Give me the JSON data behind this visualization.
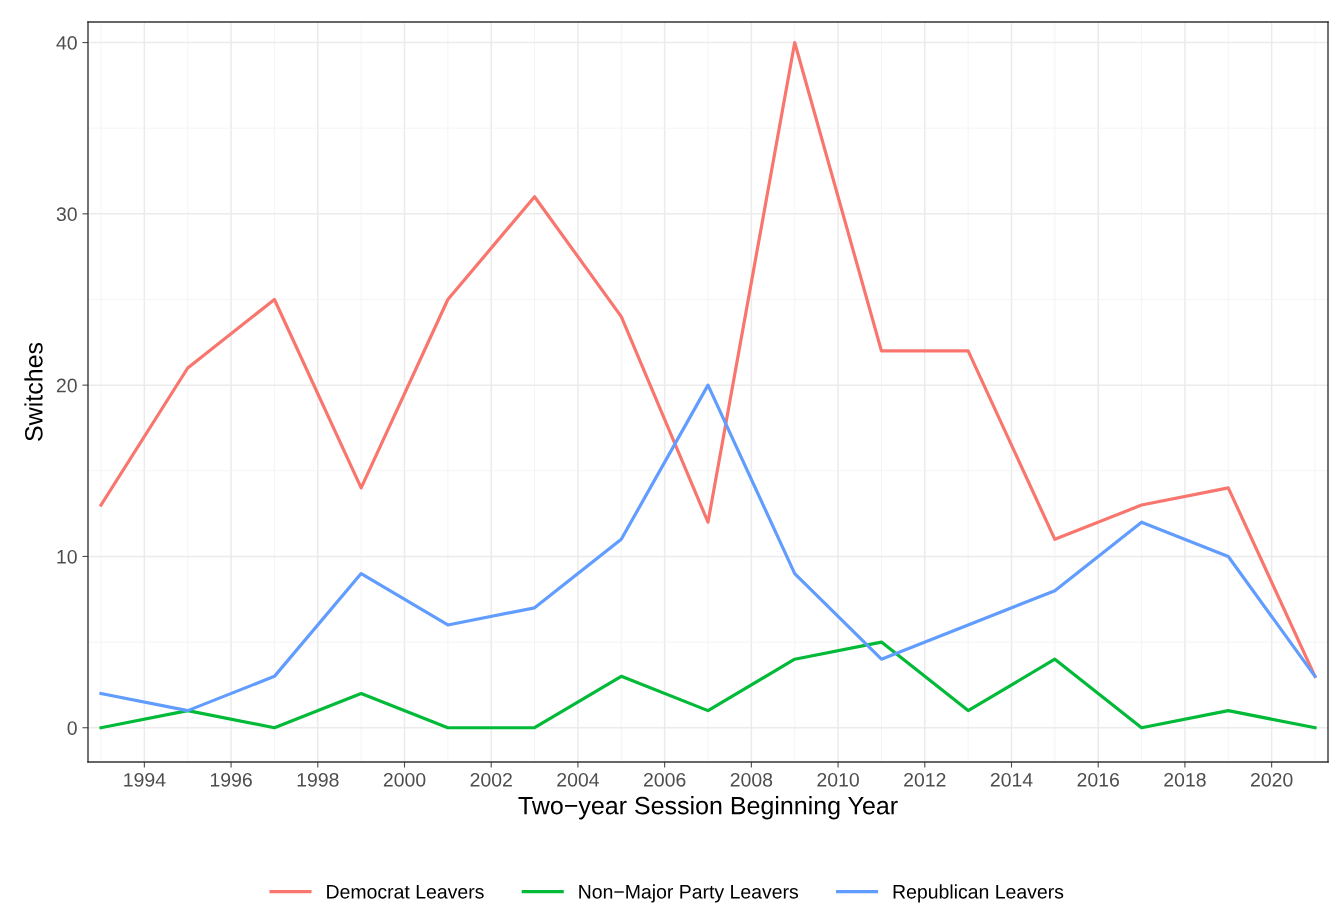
{
  "chart_data": {
    "type": "line",
    "xlabel": "Two−year Session Beginning Year",
    "ylabel": "Switches",
    "x": [
      1993,
      1995,
      1997,
      1999,
      2001,
      2003,
      2005,
      2007,
      2009,
      2011,
      2013,
      2015,
      2017,
      2019,
      2021
    ],
    "series": [
      {
        "name": "Democrat Leavers",
        "color": "#f8766d",
        "values": [
          13,
          21,
          25,
          14,
          25,
          31,
          24,
          12,
          40,
          22,
          22,
          11,
          13,
          14,
          3
        ]
      },
      {
        "name": "Non−Major Party Leavers",
        "color": "#00ba38",
        "values": [
          0,
          1,
          0,
          2,
          0,
          0,
          3,
          1,
          4,
          5,
          1,
          4,
          0,
          1,
          0
        ]
      },
      {
        "name": "Republican Leavers",
        "color": "#619cff",
        "values": [
          2,
          1,
          3,
          9,
          6,
          7,
          11,
          20,
          9,
          4,
          6,
          8,
          12,
          10,
          3
        ]
      }
    ],
    "xlim": [
      1992.7,
      2021.3
    ],
    "ylim": [
      -2,
      41.2
    ],
    "xticks": [
      1994,
      1996,
      1998,
      2000,
      2002,
      2004,
      2006,
      2008,
      2010,
      2012,
      2014,
      2016,
      2018,
      2020
    ],
    "yticks": [
      0,
      10,
      20,
      30,
      40
    ],
    "grid": true,
    "legend": "bottom",
    "marker": "none",
    "line_style": "solid"
  }
}
